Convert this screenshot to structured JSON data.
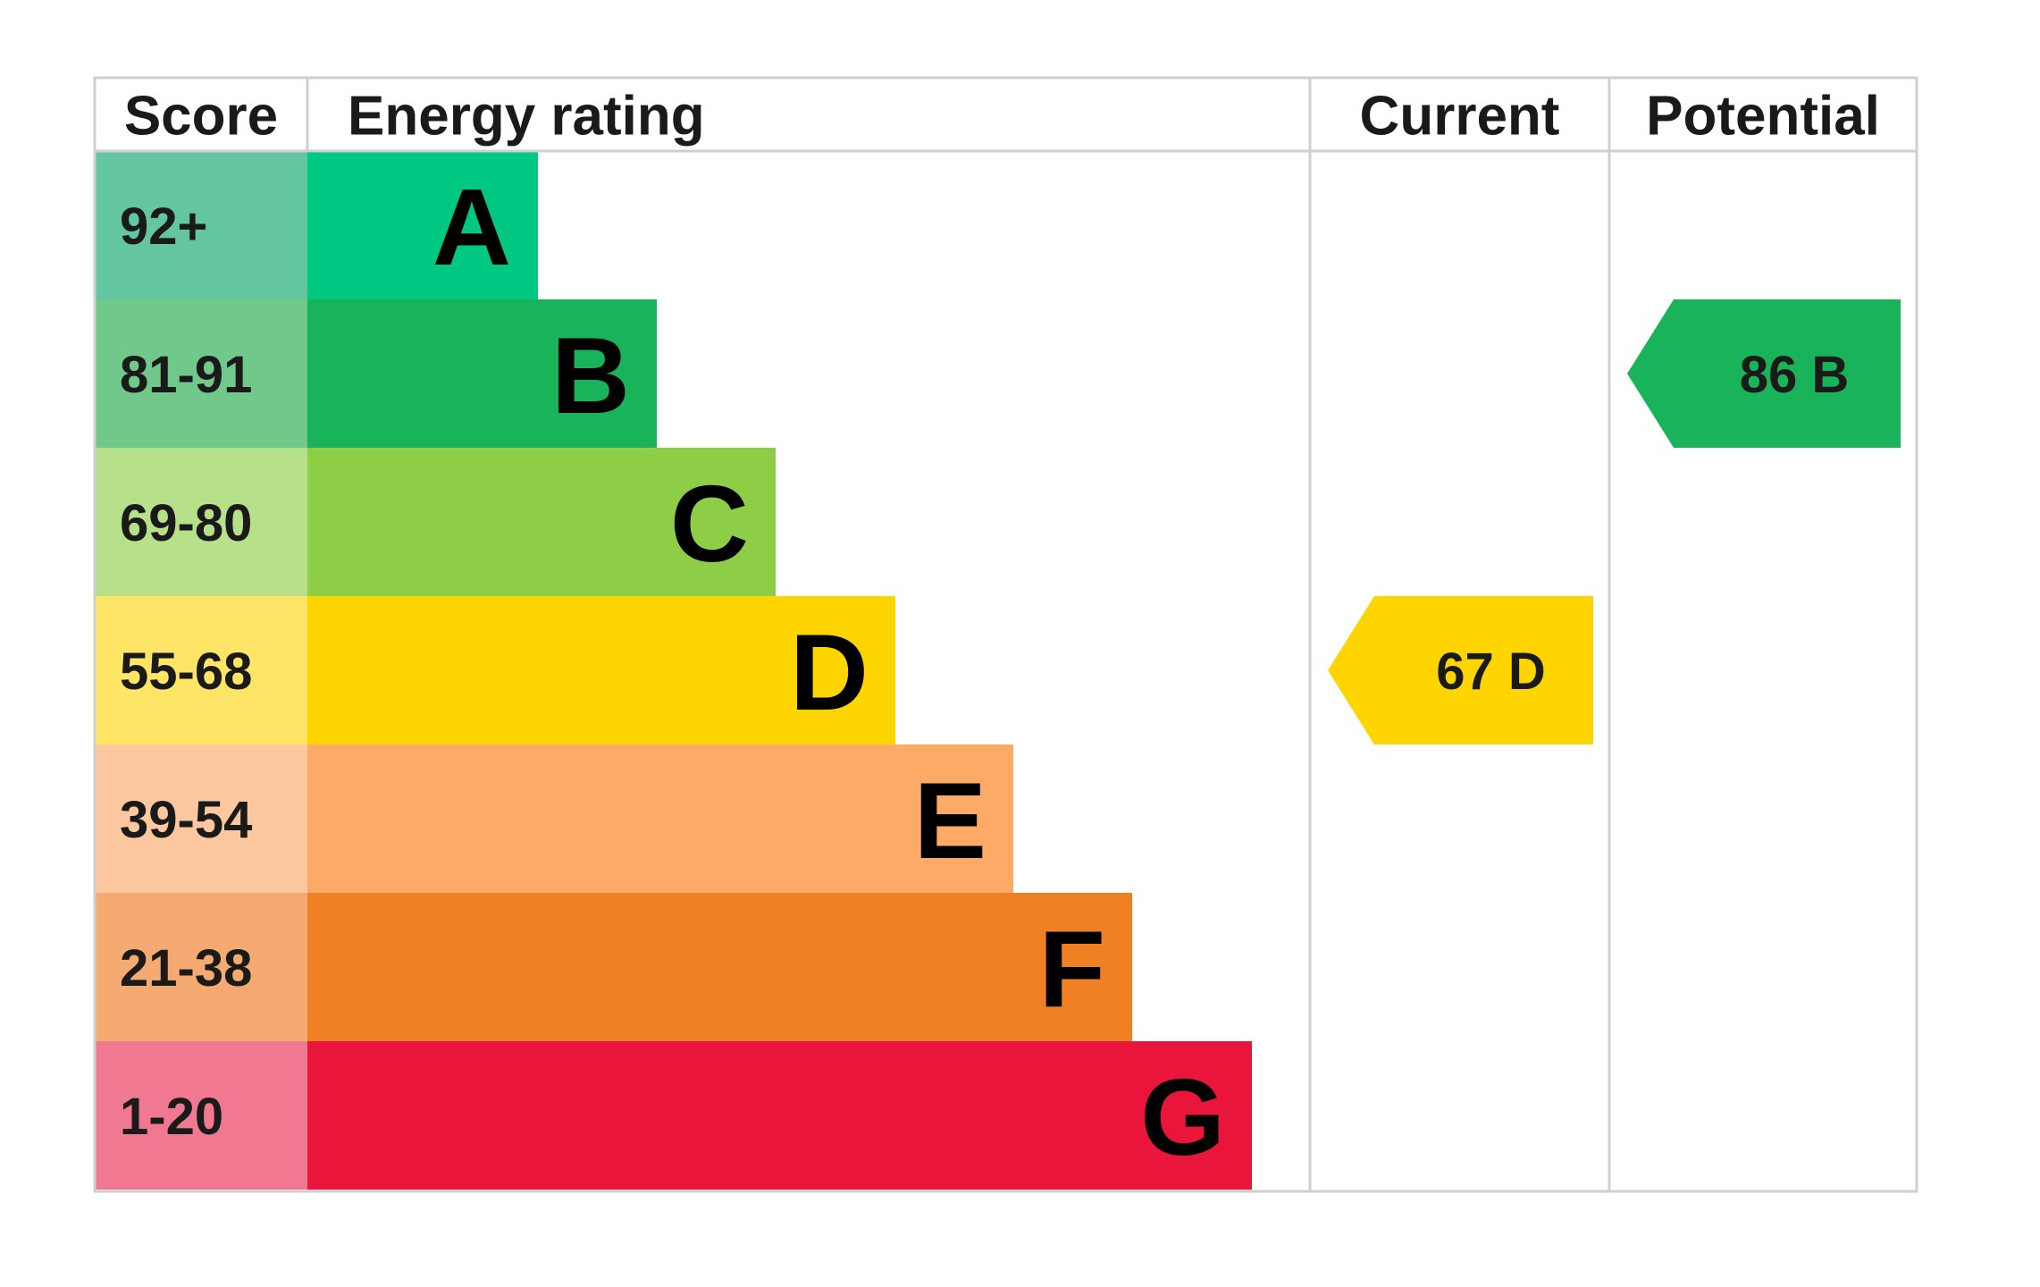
{
  "chart_data": {
    "type": "table",
    "headers": {
      "score": "Score",
      "energy_rating": "Energy rating",
      "current": "Current",
      "potential": "Potential"
    },
    "bands": [
      {
        "letter": "A",
        "score_range": "92+",
        "color": "#00c781",
        "score_bg": "#63c6a1"
      },
      {
        "letter": "B",
        "score_range": "81-91",
        "color": "#19b459",
        "score_bg": "#70c88b"
      },
      {
        "letter": "C",
        "score_range": "69-80",
        "color": "#8dce46",
        "score_bg": "#b6e08a"
      },
      {
        "letter": "D",
        "score_range": "55-68",
        "color": "#ffd500",
        "score_bg": "#ffe566"
      },
      {
        "letter": "E",
        "score_range": "39-54",
        "color": "#fcaa65",
        "score_bg": "#fdc8a0"
      },
      {
        "letter": "F",
        "score_range": "21-38",
        "color": "#ef8023",
        "score_bg": "#f4aa70"
      },
      {
        "letter": "G",
        "score_range": "1-20",
        "color": "#e9153b",
        "score_bg": "#f07891"
      }
    ],
    "current": {
      "score": 67,
      "band": "D",
      "label": "67  D"
    },
    "potential": {
      "score": 86,
      "band": "B",
      "label": "86  B"
    }
  }
}
